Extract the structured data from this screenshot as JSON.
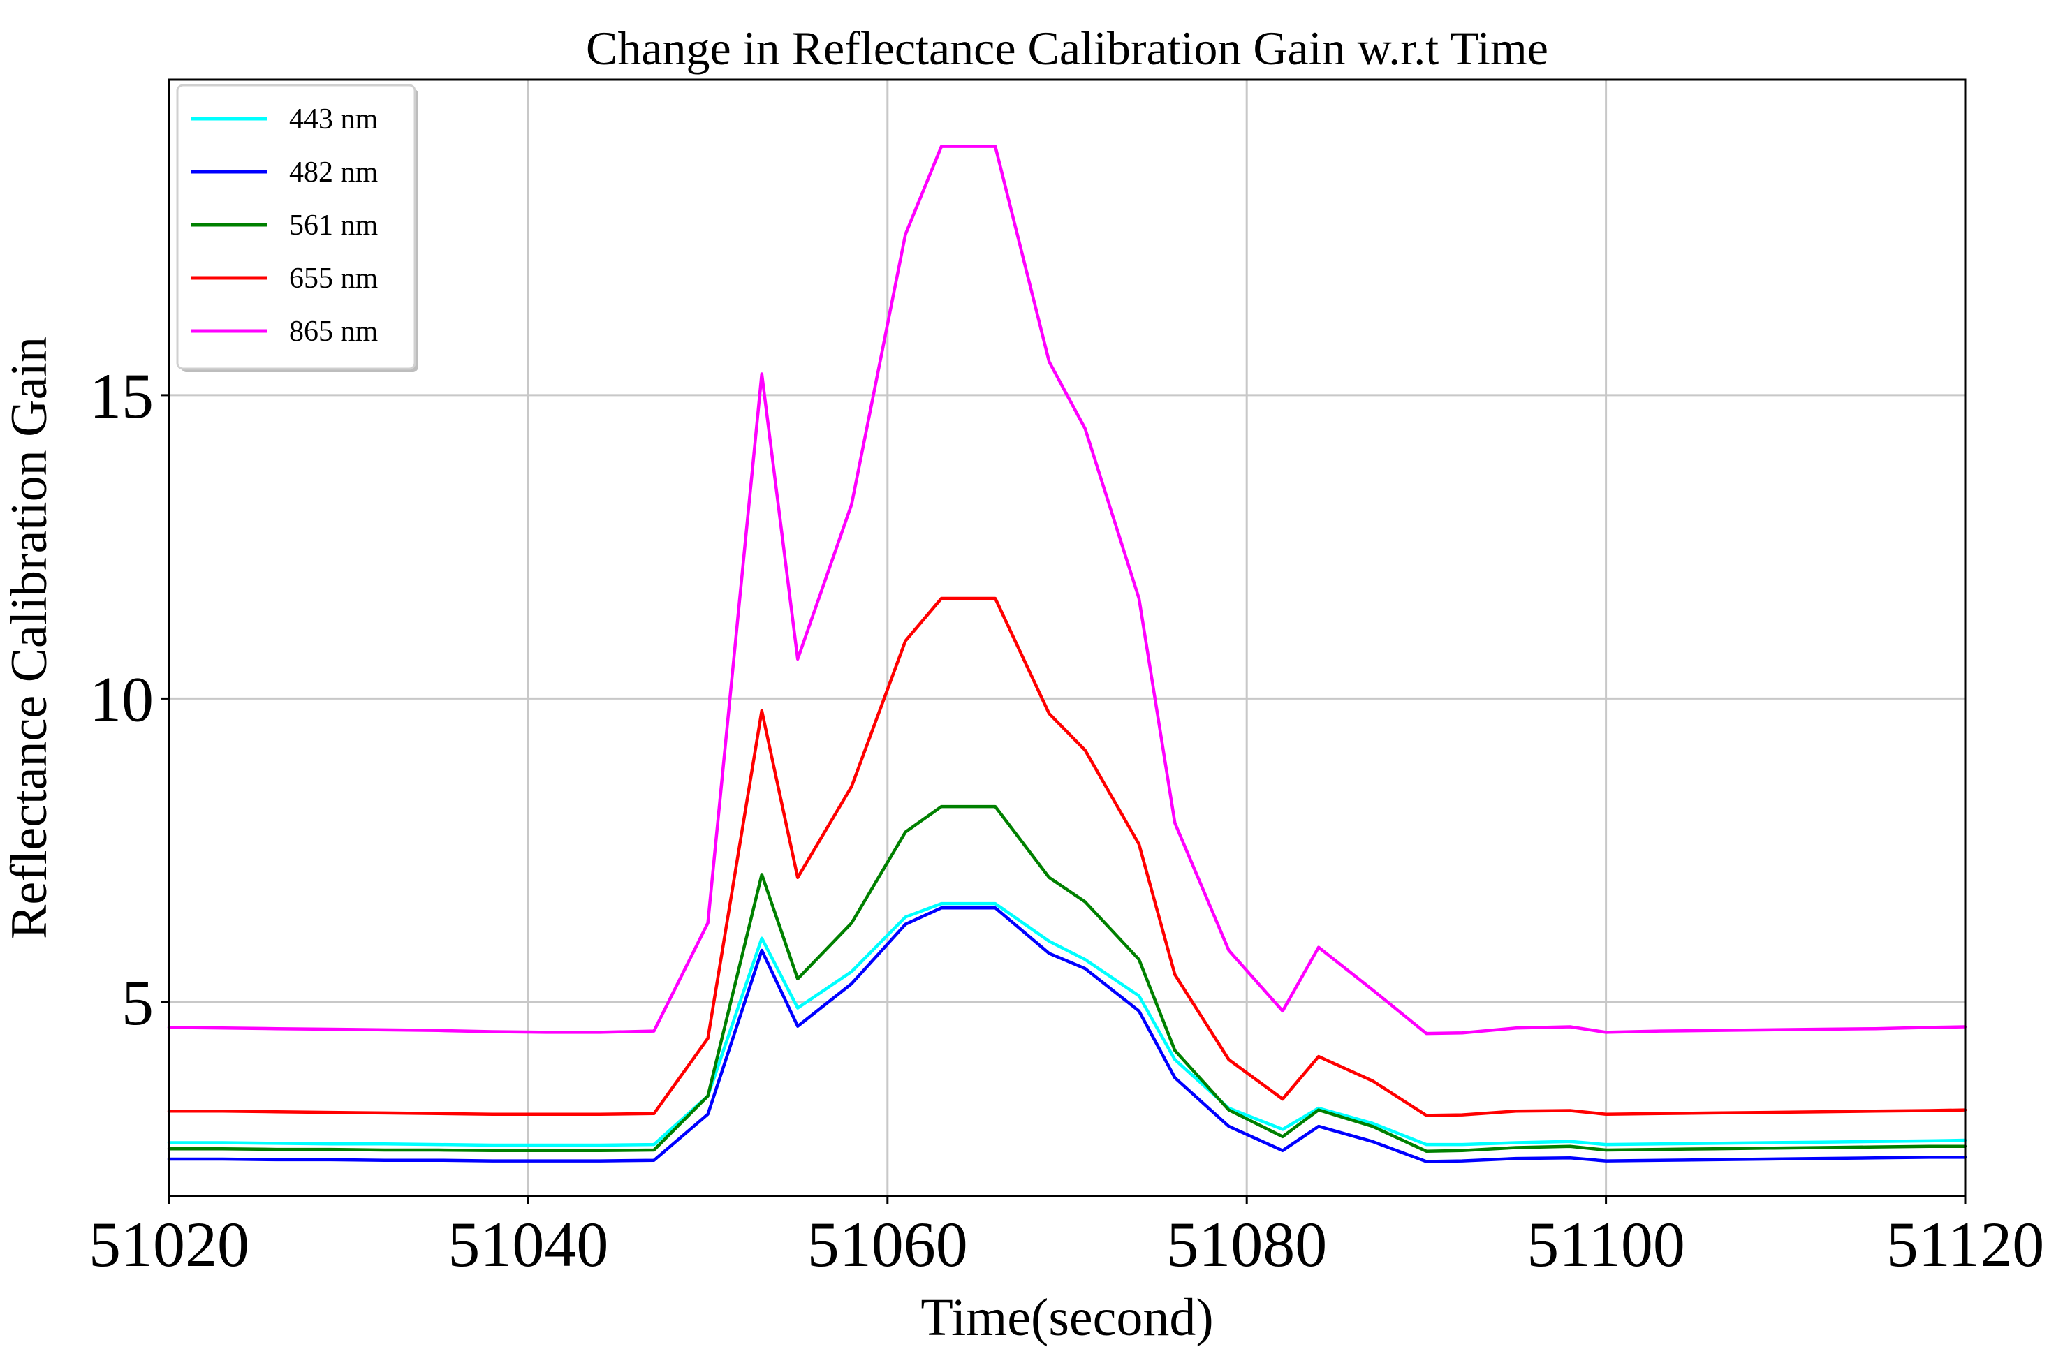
{
  "chart_data": {
    "type": "line",
    "title": "Change in Reflectance Calibration Gain w.r.t Time",
    "xlabel": "Time(second)",
    "ylabel": "Reflectance Calibration Gain",
    "xlim": [
      51020,
      51120
    ],
    "ylim": [
      1.8,
      20.2
    ],
    "xticks": [
      51020,
      51040,
      51060,
      51080,
      51100,
      51120
    ],
    "yticks": [
      5,
      10,
      15
    ],
    "grid": true,
    "legend_position": "top-left",
    "x": [
      51020,
      51023,
      51026,
      51029,
      51032,
      51035,
      51038,
      51041,
      51044,
      51047,
      51050,
      51053,
      51055,
      51058,
      51061,
      51063,
      51066,
      51069,
      51071,
      51074,
      51076,
      51079,
      51082,
      51084,
      51087,
      51090,
      51092,
      51095,
      51098,
      51100,
      51103,
      51106,
      51109,
      51112,
      51115,
      51118,
      51120
    ],
    "series": [
      {
        "name": "443 nm",
        "color": "#00ffff",
        "values": [
          2.68,
          2.68,
          2.67,
          2.66,
          2.66,
          2.65,
          2.64,
          2.64,
          2.64,
          2.65,
          3.45,
          6.05,
          4.9,
          5.5,
          6.4,
          6.62,
          6.62,
          6.0,
          5.7,
          5.1,
          4.05,
          3.25,
          2.9,
          3.25,
          3.0,
          2.65,
          2.65,
          2.68,
          2.7,
          2.65,
          2.66,
          2.67,
          2.68,
          2.69,
          2.7,
          2.71,
          2.72
        ]
      },
      {
        "name": "482 nm",
        "color": "#0000ff",
        "values": [
          2.41,
          2.41,
          2.4,
          2.4,
          2.39,
          2.39,
          2.38,
          2.38,
          2.38,
          2.39,
          3.15,
          5.85,
          4.6,
          5.3,
          6.28,
          6.55,
          6.55,
          5.8,
          5.55,
          4.85,
          3.75,
          2.95,
          2.55,
          2.95,
          2.7,
          2.37,
          2.38,
          2.42,
          2.43,
          2.38,
          2.39,
          2.4,
          2.41,
          2.42,
          2.43,
          2.44,
          2.44
        ]
      },
      {
        "name": "561 nm",
        "color": "#008000",
        "values": [
          2.58,
          2.58,
          2.57,
          2.57,
          2.56,
          2.56,
          2.55,
          2.55,
          2.55,
          2.56,
          3.45,
          7.1,
          5.38,
          6.3,
          7.8,
          8.22,
          8.22,
          7.05,
          6.65,
          5.7,
          4.2,
          3.22,
          2.78,
          3.22,
          2.95,
          2.54,
          2.55,
          2.6,
          2.62,
          2.56,
          2.57,
          2.58,
          2.59,
          2.6,
          2.61,
          2.62,
          2.62
        ]
      },
      {
        "name": "655 nm",
        "color": "#ff0000",
        "values": [
          3.2,
          3.2,
          3.19,
          3.18,
          3.17,
          3.16,
          3.15,
          3.15,
          3.15,
          3.16,
          4.4,
          9.8,
          7.05,
          8.55,
          10.95,
          11.65,
          11.65,
          9.75,
          9.15,
          7.6,
          5.45,
          4.05,
          3.4,
          4.1,
          3.7,
          3.13,
          3.14,
          3.2,
          3.21,
          3.15,
          3.16,
          3.17,
          3.18,
          3.19,
          3.2,
          3.21,
          3.22
        ]
      },
      {
        "name": "865 nm",
        "color": "#ff00ff",
        "values": [
          4.58,
          4.57,
          4.56,
          4.55,
          4.54,
          4.53,
          4.51,
          4.5,
          4.5,
          4.52,
          6.3,
          15.35,
          10.65,
          13.2,
          17.65,
          19.1,
          19.1,
          15.55,
          14.45,
          11.65,
          7.95,
          5.85,
          4.85,
          5.9,
          5.2,
          4.48,
          4.49,
          4.57,
          4.59,
          4.5,
          4.52,
          4.53,
          4.54,
          4.55,
          4.56,
          4.58,
          4.59
        ]
      }
    ]
  }
}
